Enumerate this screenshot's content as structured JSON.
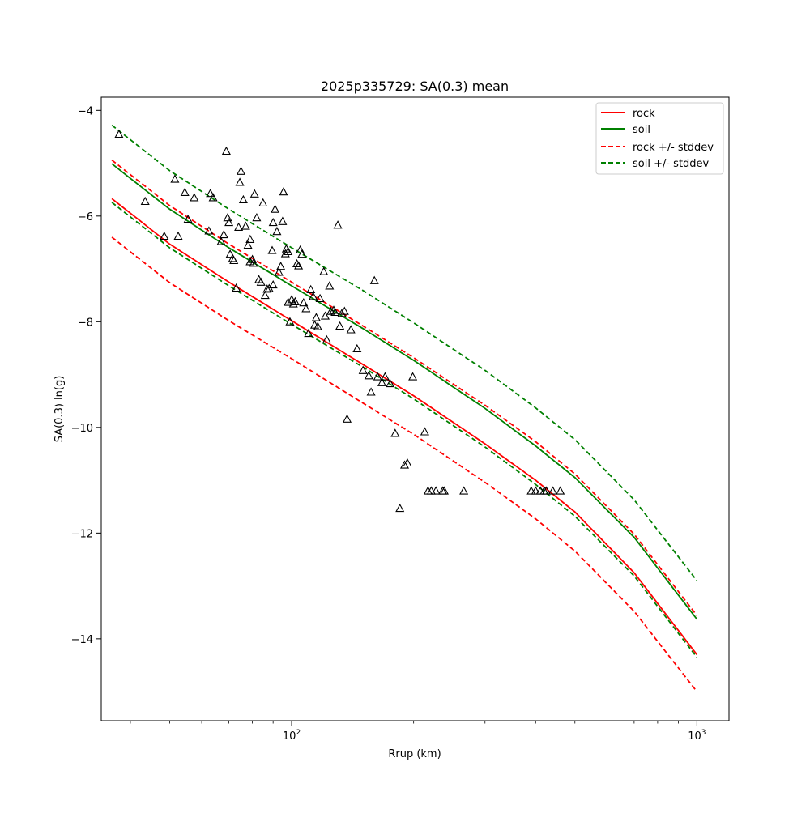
{
  "chart_data": {
    "type": "scatter",
    "title": "2025p335729: SA(0.3) mean",
    "xlabel": "Rrup (km)",
    "ylabel": "SA(0.3) ln(g)",
    "xscale": "log",
    "xlim": [
      33.9,
      1200
    ],
    "ylim": [
      -15.55,
      -3.75
    ],
    "xticks": [
      {
        "value": 100,
        "label": "10",
        "exp": "2"
      },
      {
        "value": 1000,
        "label": "10",
        "exp": "3"
      }
    ],
    "yticks": [
      {
        "value": -4,
        "label": "−4"
      },
      {
        "value": -6,
        "label": "−6"
      },
      {
        "value": -8,
        "label": "−8"
      },
      {
        "value": -10,
        "label": "−10"
      },
      {
        "value": -12,
        "label": "−12"
      },
      {
        "value": -14,
        "label": "−14"
      }
    ],
    "grid": false,
    "legend_position": "top-right",
    "lines": [
      {
        "name": "rock",
        "color": "#ff0000",
        "dash": "solid",
        "x": [
          36,
          50,
          70,
          100,
          150,
          200,
          300,
          400,
          500,
          700,
          1000
        ],
        "y": [
          -5.67,
          -6.53,
          -7.25,
          -7.98,
          -8.81,
          -9.4,
          -10.31,
          -11.0,
          -11.6,
          -12.75,
          -14.3
        ]
      },
      {
        "name": "soil",
        "color": "#008000",
        "dash": "solid",
        "x": [
          36,
          50,
          70,
          100,
          150,
          200,
          300,
          400,
          500,
          700,
          1000
        ],
        "y": [
          -5.01,
          -5.87,
          -6.6,
          -7.32,
          -8.13,
          -8.73,
          -9.64,
          -10.35,
          -10.95,
          -12.08,
          -13.63
        ]
      },
      {
        "name": "rock +/- stddev",
        "color": "#ff0000",
        "dash": "dashed",
        "x": [
          36,
          50,
          70,
          100,
          150,
          200,
          300,
          400,
          500,
          700,
          1000
        ],
        "y": [
          -4.94,
          -5.8,
          -6.53,
          -7.25,
          -8.08,
          -8.68,
          -9.58,
          -10.27,
          -10.88,
          -12.02,
          -13.56
        ]
      },
      {
        "name": "",
        "color": "#ff0000",
        "dash": "dashed",
        "x": [
          36,
          50,
          70,
          100,
          150,
          200,
          300,
          400,
          500,
          700,
          1000
        ],
        "y": [
          -6.4,
          -7.26,
          -7.98,
          -8.7,
          -9.54,
          -10.13,
          -11.04,
          -11.73,
          -12.34,
          -13.48,
          -15.0
        ]
      },
      {
        "name": "soil +/- stddev",
        "color": "#008000",
        "dash": "dashed",
        "x": [
          36,
          50,
          70,
          100,
          150,
          200,
          300,
          400,
          500,
          700,
          1000
        ],
        "y": [
          -4.28,
          -5.14,
          -5.87,
          -6.6,
          -7.41,
          -8.02,
          -8.92,
          -9.63,
          -10.23,
          -11.37,
          -12.9
        ]
      },
      {
        "name": "",
        "color": "#008000",
        "dash": "dashed",
        "x": [
          36,
          50,
          70,
          100,
          150,
          200,
          300,
          400,
          500,
          700,
          1000
        ],
        "y": [
          -5.74,
          -6.6,
          -7.32,
          -8.05,
          -8.86,
          -9.46,
          -10.37,
          -11.08,
          -11.68,
          -12.81,
          -14.35
        ]
      }
    ],
    "points": {
      "marker": "triangle",
      "edge_color": "#000000",
      "x": [
        37.5,
        43.5,
        48.5,
        51.5,
        52.5,
        54.5,
        55.5,
        57.5,
        62.5,
        63.0,
        64.0,
        67.0,
        68.0,
        70.5,
        79,
        80.5,
        74.5,
        69.0,
        69.5,
        70.0,
        71.5,
        72.0,
        73.0,
        74.0,
        75.0,
        76.0,
        77.0,
        78.0,
        79.0,
        80.0,
        81.0,
        82.0,
        83.0,
        84.0,
        85.0,
        86.0,
        87.0,
        88.0,
        89.5,
        90.0,
        90.0,
        91.0,
        92.0,
        93.0,
        94.0,
        95.0,
        95.5,
        96.5,
        97.0,
        98.0,
        98.0,
        99.0,
        100.0,
        101.0,
        102.0,
        103.0,
        104.0,
        105.0,
        106.0,
        107.0,
        108.5,
        110.0,
        111.5,
        113.0,
        114.0,
        115.0,
        116.0,
        117.5,
        120.0,
        121.0,
        122.0,
        124.0,
        125.0,
        127.0,
        128.0,
        130.0,
        131.5,
        133.0,
        135.0,
        137.0,
        140.0,
        145.0,
        150.0,
        155.0,
        157.0,
        160.0,
        163.0,
        167.0,
        170.0,
        175.0,
        180.0,
        185.0,
        190.0,
        193.0,
        199.0,
        213.0,
        217.0,
        221.0,
        227.0,
        236.0,
        238.0,
        266.0,
        390.0,
        400.0,
        411.0,
        420.0,
        425.0,
        441.0,
        460.0
      ],
      "y": [
        -4.45,
        -5.72,
        -6.38,
        -5.3,
        -6.38,
        -5.55,
        -6.06,
        -5.65,
        -6.28,
        -5.57,
        -5.65,
        -6.48,
        -6.35,
        -6.72,
        -6.86,
        -6.89,
        -5.36,
        -4.77,
        -6.03,
        -6.12,
        -6.8,
        -6.84,
        -7.36,
        -6.21,
        -5.15,
        -5.69,
        -6.19,
        -6.55,
        -6.44,
        -6.82,
        -5.58,
        -6.03,
        -7.2,
        -7.25,
        -5.75,
        -7.5,
        -7.38,
        -7.37,
        -6.65,
        -7.3,
        -6.12,
        -5.87,
        -6.29,
        -7.06,
        -6.95,
        -6.1,
        -5.54,
        -6.71,
        -6.62,
        -6.67,
        -7.63,
        -8.0,
        -7.58,
        -7.66,
        -7.62,
        -6.9,
        -6.94,
        -6.64,
        -6.72,
        -7.64,
        -7.75,
        -8.22,
        -7.39,
        -7.52,
        -8.06,
        -7.92,
        -8.09,
        -7.56,
        -7.05,
        -7.89,
        -8.34,
        -7.32,
        -7.8,
        -7.78,
        -7.82,
        -6.17,
        -8.08,
        -7.84,
        -7.8,
        -9.84,
        -8.15,
        -8.51,
        -8.92,
        -9.02,
        -9.33,
        -7.22,
        -9.04,
        -9.15,
        -9.04,
        -9.17,
        -10.11,
        -11.53,
        -10.71,
        -10.67,
        -9.04,
        -10.08,
        -11.2,
        -11.2,
        -11.2,
        -11.2,
        -11.2,
        -11.2,
        -11.2,
        -11.2,
        -11.2,
        -11.2,
        -11.2,
        -11.2,
        -11.2
      ]
    }
  }
}
